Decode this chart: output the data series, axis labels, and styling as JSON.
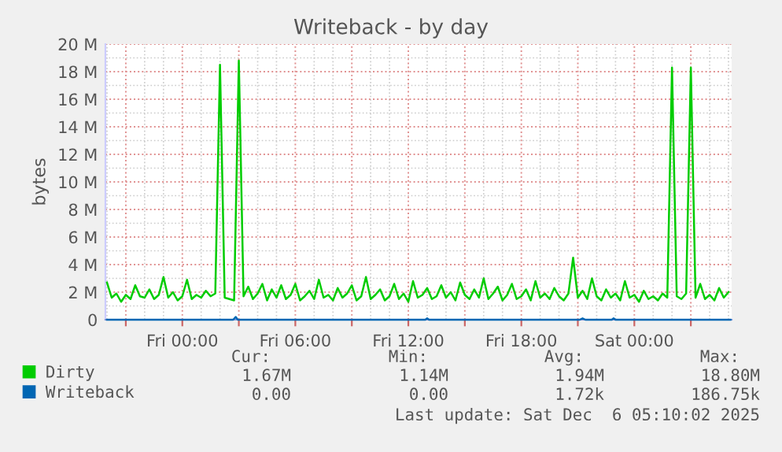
{
  "chart_data": {
    "type": "line",
    "title": "Writeback - by day",
    "ylabel": "bytes",
    "xlim": [
      "2025-12-04T19:55",
      "2025-12-06T05:10"
    ],
    "ylim": [
      0,
      20
    ],
    "xticks": [
      {
        "value": "2025-12-04T21:00",
        "label": null
      },
      {
        "value": "2025-12-05T00:00",
        "label": "Fri 00:00"
      },
      {
        "value": "2025-12-05T03:00",
        "label": null
      },
      {
        "value": "2025-12-05T06:00",
        "label": "Fri 06:00"
      },
      {
        "value": "2025-12-05T09:00",
        "label": null
      },
      {
        "value": "2025-12-05T12:00",
        "label": "Fri 12:00"
      },
      {
        "value": "2025-12-05T15:00",
        "label": null
      },
      {
        "value": "2025-12-05T18:00",
        "label": "Fri 18:00"
      },
      {
        "value": "2025-12-05T21:00",
        "label": null
      },
      {
        "value": "2025-12-06T00:00",
        "label": "Sat 00:00"
      },
      {
        "value": "2025-12-06T03:00",
        "label": null
      }
    ],
    "yticks": [
      0,
      {
        "value": 2,
        "label": "2 M"
      },
      {
        "value": 4,
        "label": "4 M"
      },
      {
        "value": 6,
        "label": "6 M"
      },
      {
        "value": 8,
        "label": "8 M"
      },
      {
        "value": 10,
        "label": "10 M"
      },
      {
        "value": 12,
        "label": "12 M"
      },
      {
        "value": 14,
        "label": "14 M"
      },
      {
        "value": 16,
        "label": "16 M"
      },
      {
        "value": 18,
        "label": "18 M"
      },
      {
        "value": 20,
        "label": "20 M"
      }
    ],
    "grid": true,
    "legend": "bottom left",
    "series": [
      {
        "name": "Dirty",
        "color": "#00cc00",
        "x": [
          "2025-12-04T20:00",
          "2025-12-04T20:15",
          "2025-12-04T20:30",
          "2025-12-04T20:45",
          "2025-12-04T21:00",
          "2025-12-04T21:15",
          "2025-12-04T21:30",
          "2025-12-04T21:45",
          "2025-12-04T22:00",
          "2025-12-04T22:15",
          "2025-12-04T22:30",
          "2025-12-04T22:45",
          "2025-12-04T23:00",
          "2025-12-04T23:15",
          "2025-12-04T23:30",
          "2025-12-04T23:45",
          "2025-12-05T00:00",
          "2025-12-05T00:15",
          "2025-12-05T00:30",
          "2025-12-05T00:45",
          "2025-12-05T01:00",
          "2025-12-05T01:15",
          "2025-12-05T01:30",
          "2025-12-05T01:45",
          "2025-12-05T02:00",
          "2025-12-05T02:15",
          "2025-12-05T02:30",
          "2025-12-05T02:45",
          "2025-12-05T03:00",
          "2025-12-05T03:15",
          "2025-12-05T03:30",
          "2025-12-05T03:45",
          "2025-12-05T04:00",
          "2025-12-05T04:15",
          "2025-12-05T04:30",
          "2025-12-05T04:45",
          "2025-12-05T05:00",
          "2025-12-05T05:15",
          "2025-12-05T05:30",
          "2025-12-05T05:45",
          "2025-12-05T06:00",
          "2025-12-05T06:15",
          "2025-12-05T06:30",
          "2025-12-05T06:45",
          "2025-12-05T07:00",
          "2025-12-05T07:15",
          "2025-12-05T07:30",
          "2025-12-05T07:45",
          "2025-12-05T08:00",
          "2025-12-05T08:15",
          "2025-12-05T08:30",
          "2025-12-05T08:45",
          "2025-12-05T09:00",
          "2025-12-05T09:15",
          "2025-12-05T09:30",
          "2025-12-05T09:45",
          "2025-12-05T10:00",
          "2025-12-05T10:15",
          "2025-12-05T10:30",
          "2025-12-05T10:45",
          "2025-12-05T11:00",
          "2025-12-05T11:15",
          "2025-12-05T11:30",
          "2025-12-05T11:45",
          "2025-12-05T12:00",
          "2025-12-05T12:15",
          "2025-12-05T12:30",
          "2025-12-05T12:45",
          "2025-12-05T13:00",
          "2025-12-05T13:15",
          "2025-12-05T13:30",
          "2025-12-05T13:45",
          "2025-12-05T14:00",
          "2025-12-05T14:15",
          "2025-12-05T14:30",
          "2025-12-05T14:45",
          "2025-12-05T15:00",
          "2025-12-05T15:15",
          "2025-12-05T15:30",
          "2025-12-05T15:45",
          "2025-12-05T16:00",
          "2025-12-05T16:15",
          "2025-12-05T16:30",
          "2025-12-05T16:45",
          "2025-12-05T17:00",
          "2025-12-05T17:15",
          "2025-12-05T17:30",
          "2025-12-05T17:45",
          "2025-12-05T18:00",
          "2025-12-05T18:15",
          "2025-12-05T18:30",
          "2025-12-05T18:45",
          "2025-12-05T19:00",
          "2025-12-05T19:15",
          "2025-12-05T19:30",
          "2025-12-05T19:45",
          "2025-12-05T20:00",
          "2025-12-05T20:15",
          "2025-12-05T20:30",
          "2025-12-05T20:45",
          "2025-12-05T21:00",
          "2025-12-05T21:15",
          "2025-12-05T21:30",
          "2025-12-05T21:45",
          "2025-12-05T22:00",
          "2025-12-05T22:15",
          "2025-12-05T22:30",
          "2025-12-05T22:45",
          "2025-12-05T23:00",
          "2025-12-05T23:15",
          "2025-12-05T23:30",
          "2025-12-05T23:45",
          "2025-12-06T00:00",
          "2025-12-06T00:15",
          "2025-12-06T00:30",
          "2025-12-06T00:45",
          "2025-12-06T01:00",
          "2025-12-06T01:15",
          "2025-12-06T01:30",
          "2025-12-06T01:45",
          "2025-12-06T02:00",
          "2025-12-06T02:15",
          "2025-12-06T02:30",
          "2025-12-06T02:45",
          "2025-12-06T03:00",
          "2025-12-06T03:15",
          "2025-12-06T03:30",
          "2025-12-06T03:45",
          "2025-12-06T04:00",
          "2025-12-06T04:15",
          "2025-12-06T04:30",
          "2025-12-06T04:45",
          "2025-12-06T05:00"
        ],
        "values": [
          2.7,
          1.6,
          1.9,
          1.3,
          1.8,
          1.5,
          2.5,
          1.7,
          1.6,
          2.2,
          1.5,
          1.8,
          3.1,
          1.6,
          2.0,
          1.4,
          1.7,
          2.9,
          1.5,
          1.8,
          1.6,
          2.1,
          1.7,
          1.9,
          18.5,
          1.6,
          1.5,
          1.4,
          18.8,
          1.7,
          2.4,
          1.5,
          1.9,
          2.6,
          1.4,
          2.2,
          1.6,
          2.5,
          1.5,
          1.8,
          2.6,
          1.4,
          1.7,
          2.1,
          1.5,
          2.9,
          1.6,
          1.8,
          1.4,
          2.3,
          1.6,
          1.9,
          2.5,
          1.4,
          1.7,
          3.1,
          1.5,
          1.8,
          2.2,
          1.4,
          1.7,
          2.6,
          1.5,
          1.9,
          1.3,
          2.8,
          1.6,
          1.8,
          2.3,
          1.5,
          1.7,
          2.5,
          1.6,
          2.0,
          1.4,
          2.7,
          1.8,
          1.5,
          2.2,
          1.6,
          3.0,
          1.5,
          1.9,
          2.4,
          1.4,
          1.8,
          2.6,
          1.5,
          1.7,
          2.2,
          1.4,
          2.8,
          1.6,
          1.9,
          1.5,
          2.3,
          1.7,
          1.4,
          1.9,
          4.5,
          1.6,
          2.1,
          1.5,
          3.0,
          1.7,
          1.4,
          2.2,
          1.6,
          1.9,
          1.4,
          2.8,
          1.6,
          1.8,
          1.3,
          2.1,
          1.5,
          1.7,
          1.4,
          1.9,
          1.6,
          18.3,
          1.7,
          1.5,
          1.9,
          18.3,
          1.6,
          2.6,
          1.5,
          1.8,
          1.4,
          2.3,
          1.6,
          2.0
        ]
      },
      {
        "name": "Writeback",
        "color": "#0066b3",
        "x": [
          "2025-12-04T20:00",
          "2025-12-05T02:42",
          "2025-12-05T02:50",
          "2025-12-05T02:57",
          "2025-12-05T12:54",
          "2025-12-05T13:00",
          "2025-12-05T13:06",
          "2025-12-05T21:06",
          "2025-12-05T21:15",
          "2025-12-05T21:24",
          "2025-12-05T22:48",
          "2025-12-05T22:54",
          "2025-12-05T23:00",
          "2025-12-06T05:06"
        ],
        "values": [
          0,
          0,
          0.2,
          0,
          0,
          0.1,
          0,
          0,
          0.1,
          0,
          0,
          0.1,
          0,
          0
        ]
      }
    ],
    "annotations": [
      "Cur:",
      "Min:",
      "Avg:",
      "Max:",
      "1.67M",
      "1.14M",
      "1.94M",
      "18.80M",
      "0.00",
      "0.00",
      "1.72k",
      "186.75k",
      "Last update: Sat Dec  6 05:10:02 2025"
    ]
  }
}
